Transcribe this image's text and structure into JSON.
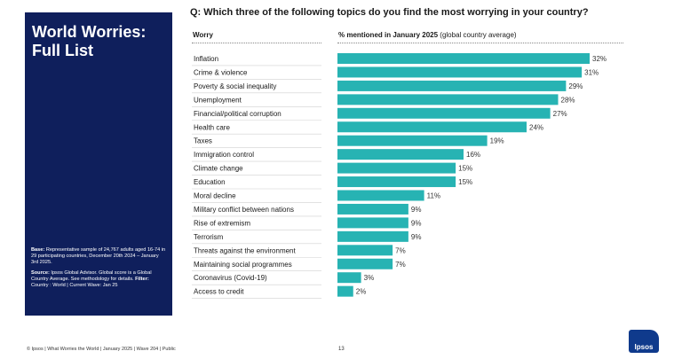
{
  "sidebar": {
    "title": "World Worries: Full List",
    "base_label": "Base:",
    "base_text": "Representative sample of 24,767 adults aged 16-74 in 29 participating countries, December 20th 2024 – January 3rd 2025.",
    "source_label": "Source:",
    "source_text": "Ipsos Global Advisor. Global score is a Global Country Average. See methodology for details.",
    "filter_label": "Filter:",
    "filter_text": "Country : World | Current Wave: Jan 25"
  },
  "question": "Q: Which three of the following topics do you find the most worrying in your country?",
  "headers": {
    "worry": "Worry",
    "mentioned": "% mentioned in January 2025",
    "mentioned_note": "(global country average)"
  },
  "footer": {
    "text": "© Ipsos | What Worries the World | January 2025 | Wave 204 | Public",
    "page": "13",
    "logo": "Ipsos"
  },
  "colors": {
    "bar": "#27b3b3",
    "sidebar": "#0f1f5c"
  },
  "chart_data": {
    "type": "bar",
    "orientation": "horizontal",
    "title": "Q: Which three of the following topics do you find the most worrying in your country?",
    "xlabel": "% mentioned in January 2025 (global country average)",
    "ylabel": "Worry",
    "xlim": [
      0,
      32
    ],
    "categories": [
      "Inflation",
      "Crime & violence",
      "Poverty & social inequality",
      "Unemployment",
      "Financial/political corruption",
      "Health care",
      "Taxes",
      "Immigration control",
      "Climate change",
      "Education",
      "Moral decline",
      "Military conflict between nations",
      "Rise of extremism",
      "Terrorism",
      "Threats against the environment",
      "Maintaining social programmes",
      "Coronavirus (Covid-19)",
      "Access to credit"
    ],
    "values": [
      32,
      31,
      29,
      28,
      27,
      24,
      19,
      16,
      15,
      15,
      11,
      9,
      9,
      9,
      7,
      7,
      3,
      2
    ],
    "labels": [
      "32%",
      "31%",
      "29%",
      "28%",
      "27%",
      "24%",
      "19%",
      "16%",
      "15%",
      "15%",
      "11%",
      "9%",
      "9%",
      "9%",
      "7%",
      "7%",
      "3%",
      "2%"
    ]
  }
}
